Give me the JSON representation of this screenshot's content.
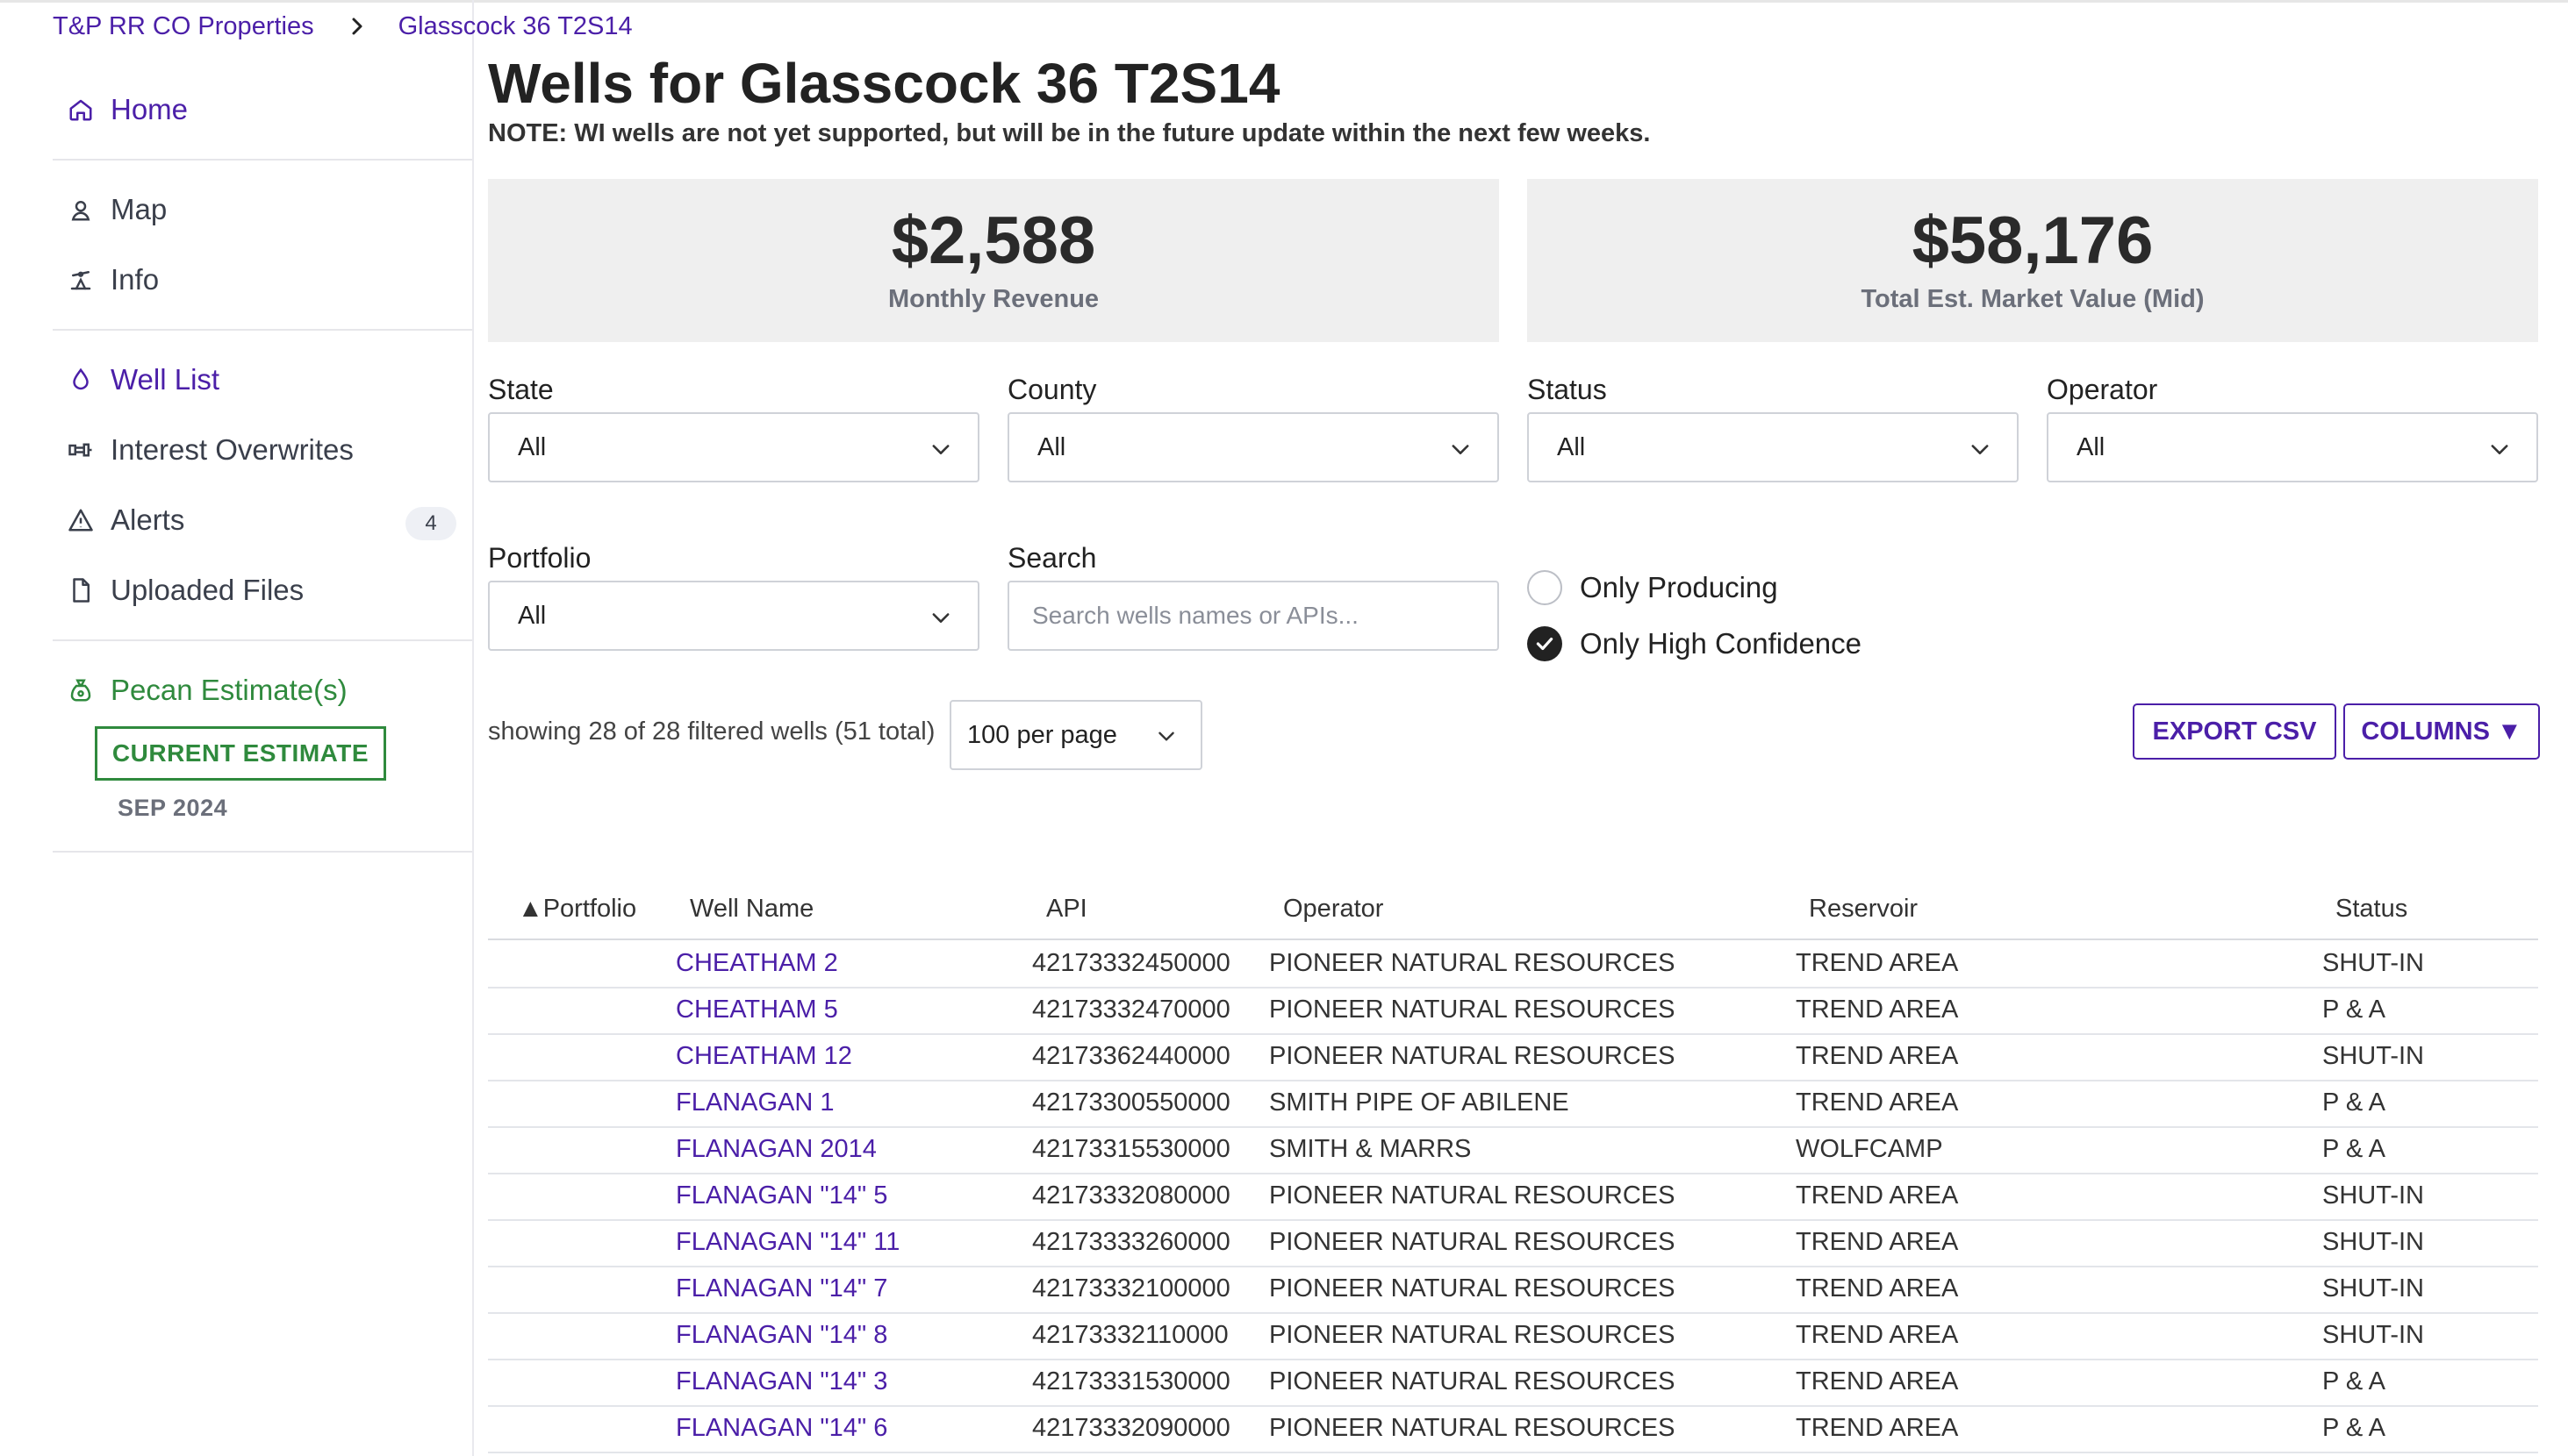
{
  "breadcrumb": [
    "T&P RR CO Properties",
    "Glasscock 36 T2S14"
  ],
  "sidebar": {
    "items": [
      {
        "label": "Home",
        "icon": "home-icon"
      },
      {
        "label": "Map",
        "icon": "map-pin-icon"
      },
      {
        "label": "Info",
        "icon": "oil-pump-icon"
      },
      {
        "label": "Well List",
        "icon": "droplet-icon"
      },
      {
        "label": "Interest Overwrites",
        "icon": "pipe-icon"
      },
      {
        "label": "Alerts",
        "icon": "warning-icon",
        "badge": "4"
      },
      {
        "label": "Uploaded Files",
        "icon": "file-icon"
      }
    ],
    "estimates": {
      "label": "Pecan Estimate(s)",
      "button": "CURRENT ESTIMATE",
      "date": "SEP 2024"
    }
  },
  "main": {
    "title": "Wells for Glasscock 36 T2S14",
    "note": "NOTE: WI wells are not yet supported, but will be in the future update within the next few weeks.",
    "cards": [
      {
        "value": "$2,588",
        "label": "Monthly Revenue"
      },
      {
        "value": "$58,176",
        "label": "Total Est. Market Value (Mid)"
      }
    ],
    "filters": {
      "state": {
        "label": "State",
        "value": "All"
      },
      "county": {
        "label": "County",
        "value": "All"
      },
      "status": {
        "label": "Status",
        "value": "All"
      },
      "operator": {
        "label": "Operator",
        "value": "All"
      },
      "portfolio": {
        "label": "Portfolio",
        "value": "All"
      },
      "search": {
        "label": "Search",
        "placeholder": "Search wells names or APIs..."
      },
      "only_producing": {
        "label": "Only Producing",
        "checked": false
      },
      "only_high_confidence": {
        "label": "Only High Confidence",
        "checked": true
      }
    },
    "showing": "showing 28 of 28 filtered wells (51 total)",
    "per_page": "100 per page",
    "export_label": "EXPORT CSV",
    "columns_label": "COLUMNS ▼"
  },
  "table": {
    "headers": [
      "▲Portfolio",
      "Well Name",
      "API",
      "Operator",
      "Reservoir",
      "Status"
    ],
    "rows": [
      {
        "portfolio": "",
        "well": "CHEATHAM 2",
        "api": "42173332450000",
        "operator": "PIONEER NATURAL RESOURCES",
        "reservoir": "TREND AREA",
        "status": "SHUT-IN"
      },
      {
        "portfolio": "",
        "well": "CHEATHAM 5",
        "api": "42173332470000",
        "operator": "PIONEER NATURAL RESOURCES",
        "reservoir": "TREND AREA",
        "status": "P & A"
      },
      {
        "portfolio": "",
        "well": "CHEATHAM 12",
        "api": "42173362440000",
        "operator": "PIONEER NATURAL RESOURCES",
        "reservoir": "TREND AREA",
        "status": "SHUT-IN"
      },
      {
        "portfolio": "",
        "well": "FLANAGAN 1",
        "api": "42173300550000",
        "operator": "SMITH PIPE OF ABILENE",
        "reservoir": "TREND AREA",
        "status": "P & A"
      },
      {
        "portfolio": "",
        "well": "FLANAGAN 2014",
        "api": "42173315530000",
        "operator": "SMITH & MARRS",
        "reservoir": "WOLFCAMP",
        "status": "P & A"
      },
      {
        "portfolio": "",
        "well": "FLANAGAN \"14\" 5",
        "api": "42173332080000",
        "operator": "PIONEER NATURAL RESOURCES",
        "reservoir": "TREND AREA",
        "status": "SHUT-IN"
      },
      {
        "portfolio": "",
        "well": "FLANAGAN \"14\" 11",
        "api": "42173333260000",
        "operator": "PIONEER NATURAL RESOURCES",
        "reservoir": "TREND AREA",
        "status": "SHUT-IN"
      },
      {
        "portfolio": "",
        "well": "FLANAGAN \"14\" 7",
        "api": "42173332100000",
        "operator": "PIONEER NATURAL RESOURCES",
        "reservoir": "TREND AREA",
        "status": "SHUT-IN"
      },
      {
        "portfolio": "",
        "well": "FLANAGAN \"14\" 8",
        "api": "42173332110000",
        "operator": "PIONEER NATURAL RESOURCES",
        "reservoir": "TREND AREA",
        "status": "SHUT-IN"
      },
      {
        "portfolio": "",
        "well": "FLANAGAN \"14\" 3",
        "api": "42173331530000",
        "operator": "PIONEER NATURAL RESOURCES",
        "reservoir": "TREND AREA",
        "status": "P & A"
      },
      {
        "portfolio": "",
        "well": "FLANAGAN \"14\" 6",
        "api": "42173332090000",
        "operator": "PIONEER NATURAL RESOURCES",
        "reservoir": "TREND AREA",
        "status": "P & A"
      }
    ]
  },
  "colors": {
    "accent": "#4b1fa8",
    "green": "#2f8a3d",
    "card_bg": "#efefef",
    "border": "#cfd2d8"
  }
}
